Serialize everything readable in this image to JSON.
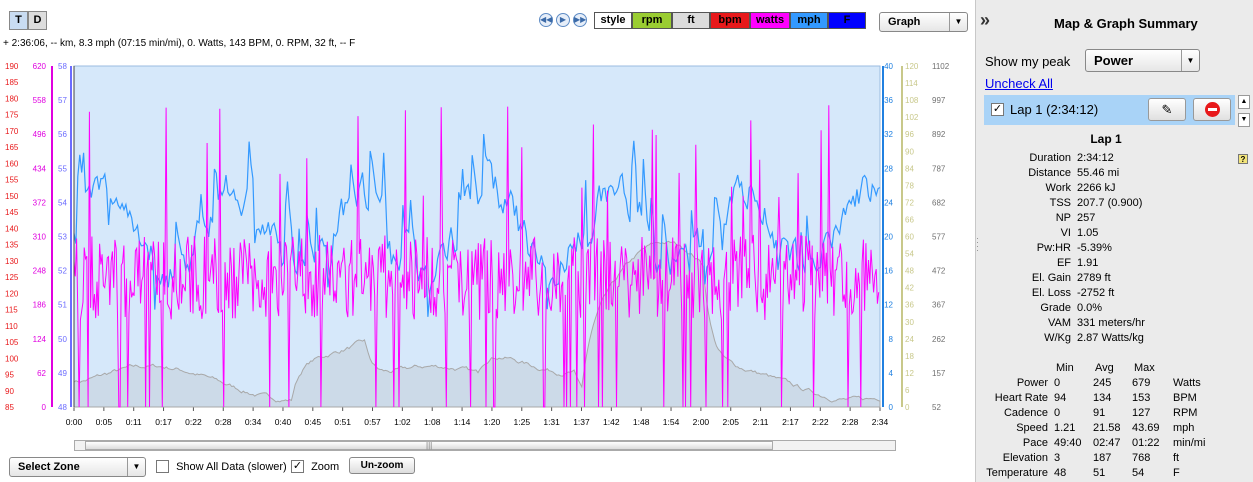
{
  "toolbar": {
    "t_label": "T",
    "d_label": "D",
    "legend": [
      {
        "label": "style",
        "bg": "#ffffff",
        "fg": "#000000"
      },
      {
        "label": "rpm",
        "bg": "#9acd32",
        "fg": "#000000"
      },
      {
        "label": "ft",
        "bg": "#dcdcdc",
        "fg": "#000000"
      },
      {
        "label": "bpm",
        "bg": "#e8191b",
        "fg": "#000000"
      },
      {
        "label": "watts",
        "bg": "#ff00ff",
        "fg": "#000000"
      },
      {
        "label": "mph",
        "bg": "#3399ff",
        "fg": "#000000"
      },
      {
        "label": "F",
        "bg": "#0000ff",
        "fg": "#000000"
      }
    ],
    "view_select": "Graph"
  },
  "status_line": "+ 2:36:06, -- km, 8.3 mph (07:15 min/mi), 0. Watts, 143 BPM, 0. RPM, 32 ft, -- F",
  "chart_data": {
    "type": "line",
    "x_ticks": [
      "0:00",
      "0:05",
      "0:11",
      "0:17",
      "0:22",
      "0:28",
      "0:34",
      "0:40",
      "0:45",
      "0:51",
      "0:57",
      "1:02",
      "1:08",
      "1:14",
      "1:20",
      "1:25",
      "1:31",
      "1:37",
      "1:42",
      "1:48",
      "1:54",
      "2:00",
      "2:05",
      "2:11",
      "2:17",
      "2:22",
      "2:28",
      "2:34"
    ],
    "axes": {
      "bpm": {
        "color": "#e8191b",
        "ticks": [
          "190",
          "185",
          "180",
          "175",
          "170",
          "165",
          "160",
          "155",
          "150",
          "145",
          "140",
          "135",
          "130",
          "125",
          "120",
          "115",
          "110",
          "105",
          "100",
          "95",
          "90",
          "85"
        ]
      },
      "watts": {
        "color": "#e000e0",
        "ticks": [
          "620",
          "558",
          "496",
          "434",
          "372",
          "310",
          "248",
          "186",
          "124",
          "62",
          "0"
        ]
      },
      "F": {
        "color": "#6b6bff",
        "ticks": [
          "58",
          "57",
          "56",
          "55",
          "54",
          "53",
          "52",
          "51",
          "50",
          "49",
          "48"
        ]
      },
      "mph": {
        "color": "#2080e0",
        "ticks": [
          "40",
          "36",
          "32",
          "28",
          "24",
          "20",
          "16",
          "12",
          "8",
          "4",
          "0"
        ]
      },
      "rpm": {
        "color": "#c8c88a",
        "ticks": [
          "120",
          "114",
          "108",
          "102",
          "96",
          "90",
          "84",
          "78",
          "72",
          "66",
          "60",
          "54",
          "48",
          "42",
          "36",
          "30",
          "24",
          "18",
          "12",
          "6",
          "0"
        ]
      },
      "ft": {
        "color": "#707070",
        "ticks": [
          "1102",
          "997",
          "892",
          "787",
          "682",
          "577",
          "472",
          "367",
          "262",
          "157",
          "52"
        ]
      }
    },
    "series": [
      {
        "name": "watts",
        "color": "#ff00ff",
        "approx_mean": 245,
        "range": [
          0,
          679
        ]
      },
      {
        "name": "mph",
        "color": "#3399ff",
        "approx_mean": 21.58,
        "range": [
          1.21,
          43.69
        ]
      },
      {
        "name": "ft",
        "color": "#b0b0b0",
        "approx_mean": 187,
        "range": [
          3,
          768
        ]
      }
    ]
  },
  "bottom": {
    "zone_select": "Select Zone",
    "show_all_label": "Show All Data (slower)",
    "zoom_label": "Zoom",
    "unzoom_label": "Un-zoom",
    "scroll_grip": "|||"
  },
  "panel": {
    "collapse_icon": "»",
    "title": "Map & Graph Summary",
    "peak_label": "Show my peak",
    "peak_value": "Power",
    "uncheck_all": "Uncheck All",
    "lap_item": "Lap 1 (2:34:12)",
    "lap_title": "Lap 1",
    "help": "?",
    "metrics": [
      {
        "key": "Duration",
        "value": "2:34:12"
      },
      {
        "key": "Distance",
        "value": "55.46 mi"
      },
      {
        "key": "Work",
        "value": "2266 kJ"
      },
      {
        "key": "TSS",
        "value": "207.7 (0.900)"
      },
      {
        "key": "NP",
        "value": "257"
      },
      {
        "key": "VI",
        "value": "1.05"
      },
      {
        "key": "Pw:HR",
        "value": "-5.39%"
      },
      {
        "key": "EF",
        "value": "1.91"
      },
      {
        "key": "El. Gain",
        "value": "2789 ft"
      },
      {
        "key": "El. Loss",
        "value": "-2752 ft"
      },
      {
        "key": "Grade",
        "value": "0.0%"
      },
      {
        "key": "VAM",
        "value": "331 meters/hr"
      },
      {
        "key": "W/Kg",
        "value": "2.87 Watts/kg"
      }
    ],
    "stats_headers": [
      "Min",
      "Avg",
      "Max"
    ],
    "stats": [
      {
        "name": "Power",
        "min": "0",
        "avg": "245",
        "max": "679",
        "unit": "Watts"
      },
      {
        "name": "Heart Rate",
        "min": "94",
        "avg": "134",
        "max": "153",
        "unit": "BPM"
      },
      {
        "name": "Cadence",
        "min": "0",
        "avg": "91",
        "max": "127",
        "unit": "RPM"
      },
      {
        "name": "Speed",
        "min": "1.21",
        "avg": "21.58",
        "max": "43.69",
        "unit": "mph"
      },
      {
        "name": "Pace",
        "min": "49:40",
        "avg": "02:47",
        "max": "01:22",
        "unit": "min/mi"
      },
      {
        "name": "Elevation",
        "min": "3",
        "avg": "187",
        "max": "768",
        "unit": "ft"
      },
      {
        "name": "Temperature",
        "min": "48",
        "avg": "51",
        "max": "54",
        "unit": "F"
      }
    ]
  }
}
